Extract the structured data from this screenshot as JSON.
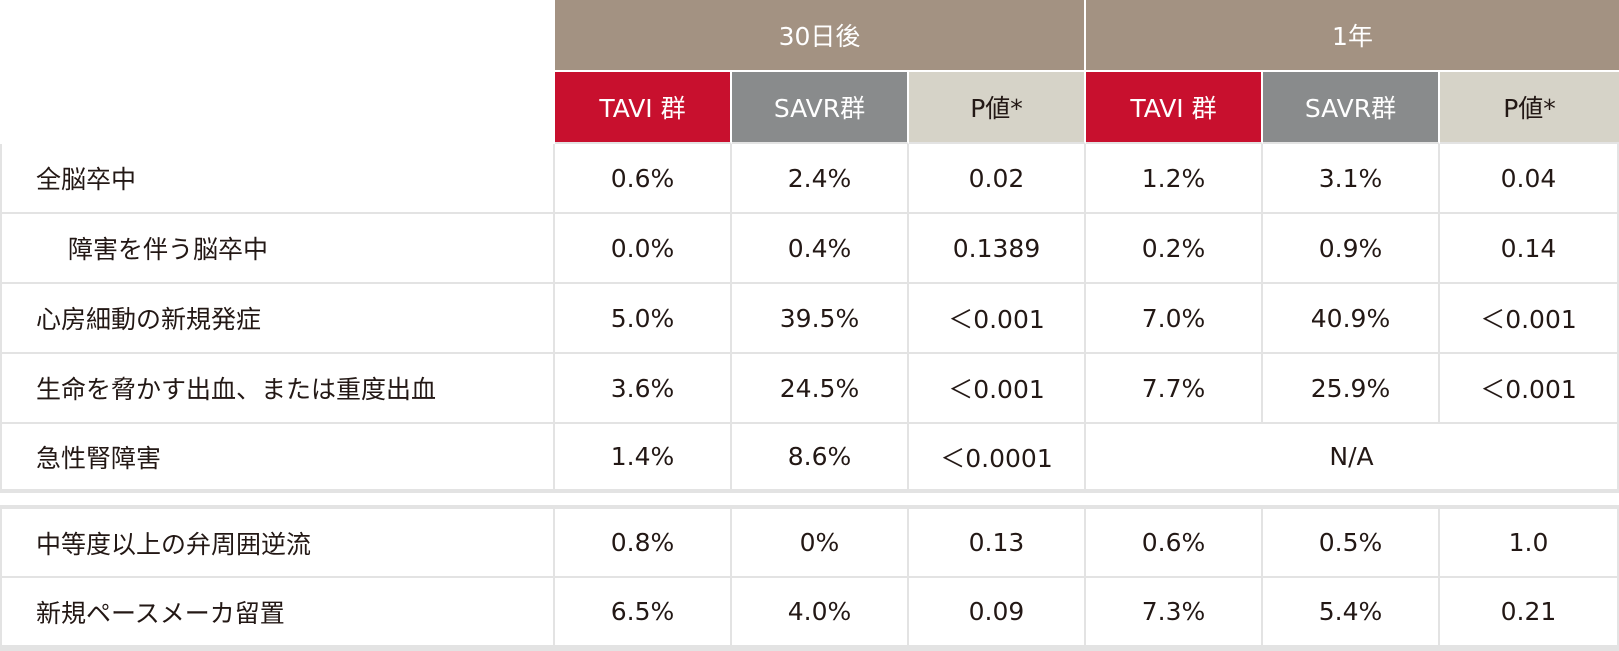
{
  "header": {
    "periods": [
      "30日後",
      "1年"
    ],
    "columns": [
      "TAVI 群",
      "SAVR群",
      "P値*",
      "TAVI 群",
      "SAVR群",
      "P値*"
    ]
  },
  "rows": [
    {
      "label": "全脳卒中",
      "values": [
        "0.6%",
        "2.4%",
        "0.02",
        "1.2%",
        "3.1%",
        "0.04"
      ]
    },
    {
      "label": "障害を伴う脳卒中",
      "values": [
        "0.0%",
        "0.4%",
        "0.1389",
        "0.2%",
        "0.9%",
        "0.14"
      ]
    },
    {
      "label": "心房細動の新規発症",
      "values": [
        "5.0%",
        "39.5%",
        "＜0.001",
        "7.0%",
        "40.9%",
        "＜0.001"
      ]
    },
    {
      "label": "生命を脅かす出血、または重度出血",
      "values": [
        "3.6%",
        "24.5%",
        "＜0.001",
        "7.7%",
        "25.9%",
        "＜0.001"
      ]
    },
    {
      "label": "急性腎障害",
      "values": [
        "1.4%",
        "8.6%",
        "＜0.0001"
      ],
      "na": "N/A"
    }
  ],
  "rows2": [
    {
      "label": "中等度以上の弁周囲逆流",
      "values": [
        "0.8%",
        "0%",
        "0.13",
        "0.6%",
        "0.5%",
        "1.0"
      ]
    },
    {
      "label": "新規ペースメーカ留置",
      "values": [
        "6.5%",
        "4.0%",
        "0.09",
        "7.3%",
        "5.4%",
        "0.21"
      ]
    }
  ]
}
